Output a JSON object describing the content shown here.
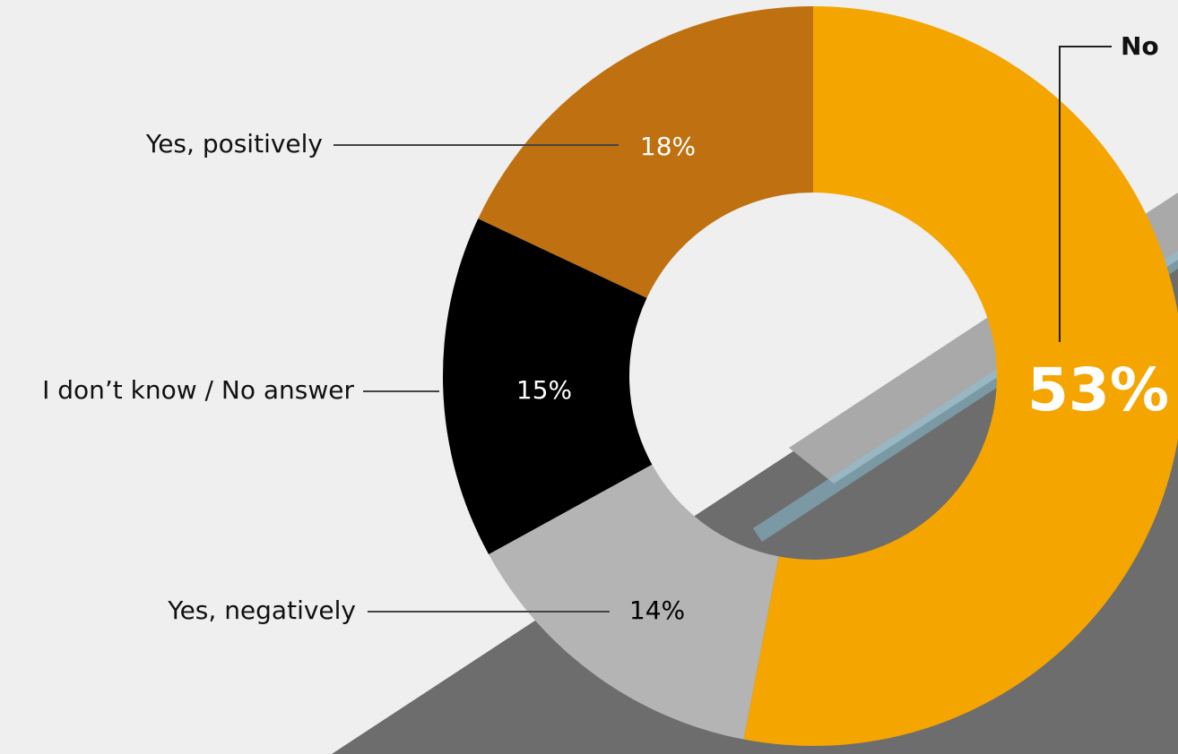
{
  "chart_data": {
    "type": "donut",
    "categories": [
      "No",
      "Yes, negatively",
      "I don’t know / No answer",
      "Yes, positively"
    ],
    "values": [
      53,
      14,
      15,
      18
    ],
    "value_labels": [
      "53%",
      "14%",
      "15%",
      "18%"
    ],
    "colors": [
      "#f5a500",
      "#b4b4b4",
      "#000000",
      "#bf7010"
    ]
  }
}
